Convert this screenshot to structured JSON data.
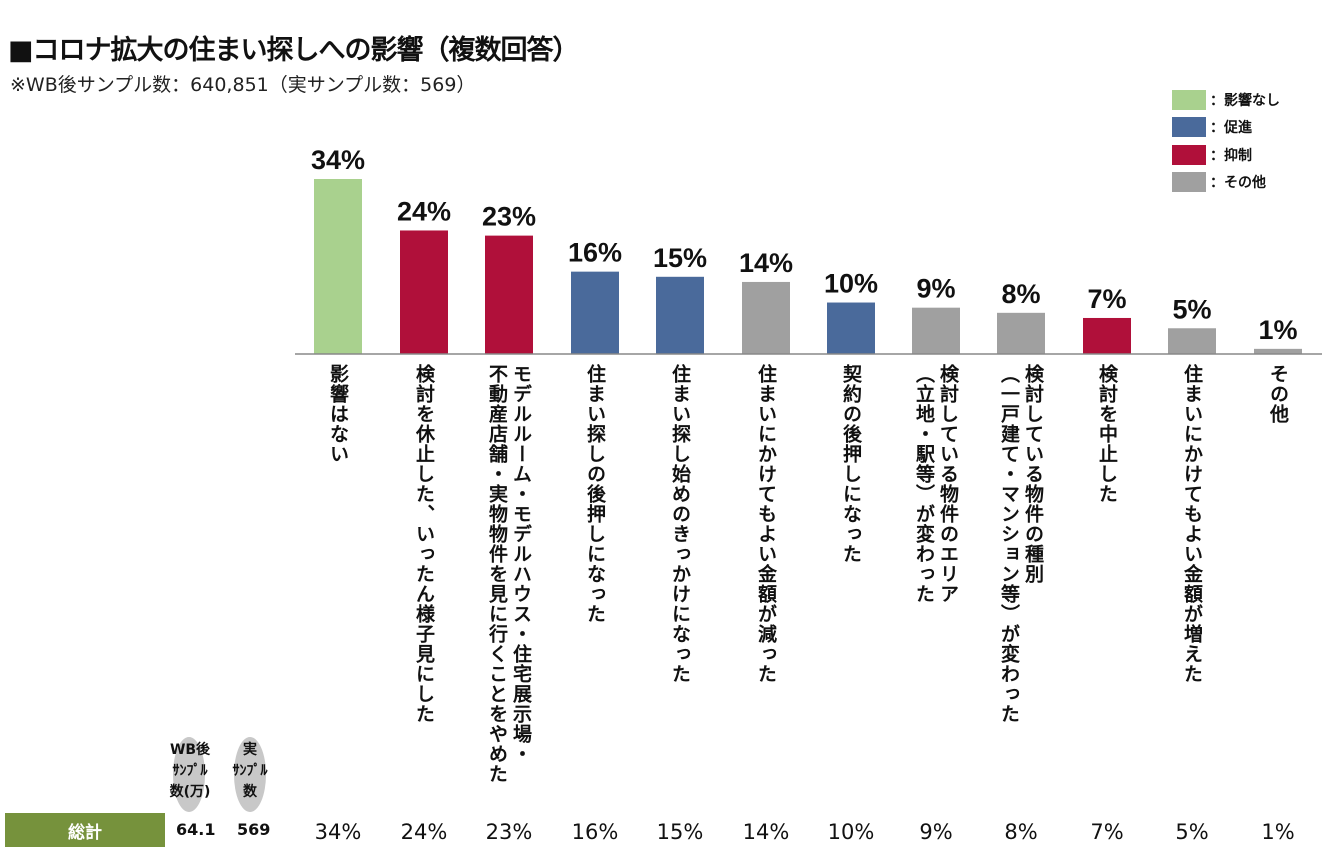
{
  "title": "■コロナ拡大の住まい探しへの影響（複数回答）",
  "subtitle": "※WB後サンプル数：640,851（実サンプル数：569）",
  "legend": [
    {
      "label": "：影響なし",
      "color": "#a9d18e"
    },
    {
      "label": "：促進",
      "color": "#4a6a9b"
    },
    {
      "label": "：抑制",
      "color": "#b0103a"
    },
    {
      "label": "：その他",
      "color": "#a0a0a0"
    }
  ],
  "chart_data": {
    "type": "bar",
    "categories": [
      "影響はない",
      "検討を休止した、いったん様子見にした",
      "モデルルーム・モデルハウス・住宅展示場・\n不動産店舗・実物物件を見に行くことをやめた",
      "住まい探しの後押しになった",
      "住まい探し始めのきっかけになった",
      "住まいにかけてもよい金額が減った",
      "契約の後押しになった",
      "検討している物件のエリア\n（立地・駅等）が変わった",
      "検討している物件の種別\n（一戸建て・マンション等）が変わった",
      "検討を中止した",
      "住まいにかけてもよい金額が増えた",
      "その他"
    ],
    "values": [
      34,
      24,
      23,
      16,
      15,
      14,
      10,
      9,
      8,
      7,
      5,
      1
    ],
    "groups": [
      "影響なし",
      "抑制",
      "抑制",
      "促進",
      "促進",
      "その他",
      "促進",
      "その他",
      "その他",
      "抑制",
      "その他",
      "その他"
    ],
    "data_labels": [
      "34%",
      "24%",
      "23%",
      "16%",
      "15%",
      "14%",
      "10%",
      "9%",
      "8%",
      "7%",
      "5%",
      "1%"
    ],
    "colors": {
      "影響なし": "#a9d18e",
      "促進": "#4a6a9b",
      "抑制": "#b0103a",
      "その他": "#a0a0a0"
    },
    "ylim": [
      0,
      34
    ],
    "grid": false,
    "legend_position": "top-right"
  },
  "table": {
    "header_wb": "WB後\nｻﾝﾌﾟﾙ\n数(万)",
    "header_real": "実\nｻﾝﾌﾟﾙ\n数",
    "row_label": "総計",
    "wb_value": "64.1",
    "real_value": "569",
    "percents": [
      "34%",
      "24%",
      "23%",
      "16%",
      "15%",
      "14%",
      "10%",
      "9%",
      "8%",
      "7%",
      "5%",
      "1%"
    ]
  }
}
